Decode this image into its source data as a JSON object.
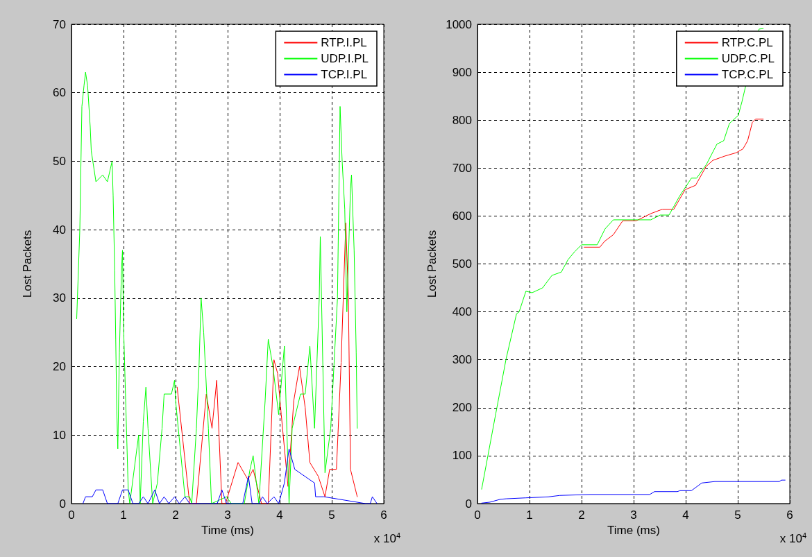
{
  "chart_data": [
    {
      "type": "line",
      "xlabel": "Time (ms)",
      "ylabel": "Lost Packets",
      "annotations": [
        "x 10$^{4}$"
      ],
      "xlim": [
        0,
        6
      ],
      "xticks": [
        0,
        1,
        2,
        3,
        4,
        5,
        6
      ],
      "ylim": [
        0,
        70
      ],
      "yticks": [
        0,
        10,
        20,
        30,
        40,
        50,
        60,
        70
      ],
      "grid": true,
      "legend": "top right",
      "marker": "none",
      "line_style": "solid",
      "series": [
        {
          "name": "RTP.I.PL",
          "color": "#ff0000",
          "x": [
            2.03,
            2.27,
            2.4,
            2.59,
            2.7,
            2.79,
            2.89,
            2.96,
            3.2,
            3.39,
            3.49,
            3.65,
            3.78,
            3.89,
            3.96,
            4.03,
            4.16,
            4.27,
            4.38,
            4.49,
            4.58,
            4.74,
            4.87,
            4.96,
            5.09,
            5.18,
            5.27,
            5.32,
            5.36,
            5.49
          ],
          "values": [
            17,
            0,
            0,
            16,
            11,
            18,
            0,
            0,
            6,
            3.5,
            5,
            0,
            0,
            21,
            19,
            13,
            2.5,
            15,
            20,
            14,
            6,
            4,
            1,
            5,
            5,
            20.6,
            41,
            30,
            5,
            1
          ]
        },
        {
          "name": "UDP.I.PL",
          "color": "#00ff00",
          "x": [
            0.1,
            0.16,
            0.2,
            0.24,
            0.27,
            0.31,
            0.36,
            0.38,
            0.47,
            0.6,
            0.69,
            0.78,
            0.8,
            0.83,
            0.85,
            0.87,
            0.89,
            0.92,
            0.96,
            0.98,
            1.0,
            1.09,
            1.12,
            1.29,
            1.32,
            1.38,
            1.43,
            1.47,
            1.56,
            1.65,
            1.74,
            1.78,
            1.92,
            1.98,
            2.0,
            2.09,
            2.18,
            2.27,
            2.31,
            2.4,
            2.45,
            2.49,
            2.54,
            2.63,
            2.69,
            2.98,
            3.07,
            3.32,
            3.43,
            3.49,
            3.6,
            3.72,
            3.78,
            3.87,
            3.98,
            4.09,
            4.18,
            4.24,
            4.4,
            4.49,
            4.58,
            4.67,
            4.76,
            4.78,
            4.87,
            4.98,
            5.11,
            5.16,
            5.2,
            5.25,
            5.29,
            5.36,
            5.38,
            5.43,
            5.47,
            5.49
          ],
          "values": [
            27,
            40,
            58,
            61,
            63,
            61,
            55,
            51.5,
            47,
            48,
            47,
            50,
            45,
            34,
            24,
            13.5,
            8,
            22,
            34,
            37,
            26,
            2,
            0,
            10,
            0,
            12,
            17,
            11,
            0,
            3,
            11,
            16,
            16,
            18,
            15,
            8,
            1,
            1,
            0,
            11,
            20,
            30,
            25,
            11,
            0,
            1,
            0,
            0,
            5,
            7,
            0,
            15,
            24,
            20,
            13,
            23,
            0,
            11,
            16,
            16,
            23,
            11,
            30,
            39,
            4.5,
            11,
            30,
            58,
            50,
            43,
            28,
            46,
            48,
            37,
            22,
            11
          ]
        },
        {
          "name": "TCP.I.PL",
          "color": "#0000ff",
          "x": [
            0.22,
            0.27,
            0.4,
            0.47,
            0.6,
            0.69,
            0.89,
            0.98,
            1.09,
            1.18,
            1.29,
            1.38,
            1.47,
            1.6,
            1.69,
            1.78,
            1.87,
            1.98,
            2.07,
            2.18,
            2.27,
            2.8,
            2.89,
            2.98,
            3.29,
            3.4,
            3.47,
            3.6,
            3.67,
            3.76,
            3.89,
            3.98,
            4.09,
            4.18,
            4.29,
            4.67,
            4.69,
            4.85,
            5.65,
            5.74,
            5.78,
            5.87
          ],
          "values": [
            0,
            1,
            1,
            2,
            2,
            0,
            0,
            2,
            2,
            0,
            0,
            1,
            0,
            2,
            0,
            1,
            0,
            1,
            0,
            1,
            0,
            0,
            2,
            0,
            0,
            4,
            0,
            0,
            1,
            0,
            1,
            0,
            3,
            8,
            5,
            3,
            1,
            1,
            0,
            0,
            1,
            0
          ]
        }
      ]
    },
    {
      "type": "line",
      "xlabel": "Time (ms)",
      "ylabel": "Lost Packets",
      "annotations": [
        "x 10$^{4}$"
      ],
      "xlim": [
        0,
        6
      ],
      "xticks": [
        0,
        1,
        2,
        3,
        4,
        5,
        6
      ],
      "ylim": [
        0,
        1000
      ],
      "yticks": [
        0,
        100,
        200,
        300,
        400,
        500,
        600,
        700,
        800,
        900,
        1000
      ],
      "grid": true,
      "legend": "top right",
      "marker": "none",
      "line_style": "solid",
      "series": [
        {
          "name": "RTP.C.PL",
          "color": "#ff0000",
          "x": [
            2.05,
            2.35,
            2.44,
            2.61,
            2.79,
            3.05,
            3.33,
            3.55,
            3.77,
            3.99,
            4.19,
            4.39,
            4.52,
            4.75,
            4.97,
            5.1,
            5.19,
            5.28,
            5.34,
            5.49
          ],
          "values": [
            535,
            535,
            547,
            561,
            590,
            590,
            605,
            614,
            614,
            655,
            664,
            703,
            716,
            725,
            732,
            740,
            757,
            795,
            802,
            802
          ]
        },
        {
          "name": "UDP.C.PL",
          "color": "#00ff00",
          "x": [
            0.08,
            0.35,
            0.55,
            0.75,
            0.8,
            0.93,
            1.05,
            1.25,
            1.43,
            1.61,
            1.74,
            1.87,
            2.0,
            2.3,
            2.45,
            2.61,
            3.33,
            3.51,
            3.68,
            3.88,
            4.11,
            4.21,
            4.4,
            4.6,
            4.73,
            4.84,
            5.01,
            5.08,
            5.41,
            5.49
          ],
          "values": [
            30,
            187,
            302,
            396,
            400,
            443,
            440,
            450,
            476,
            483,
            509,
            526,
            540,
            540,
            573,
            592,
            592,
            602,
            602,
            641,
            679,
            679,
            708,
            750,
            757,
            793,
            810,
            838,
            990,
            991
          ]
        },
        {
          "name": "TCP.C.PL",
          "color": "#0000ff",
          "x": [
            0.08,
            0.24,
            0.44,
            0.55,
            0.93,
            1.36,
            1.58,
            2.16,
            3.31,
            3.4,
            3.84,
            3.89,
            4.11,
            4.31,
            4.56,
            5.8,
            5.84,
            5.91
          ],
          "values": [
            1,
            3,
            9,
            10,
            12,
            14,
            17,
            19,
            19,
            25,
            25,
            27,
            27,
            43,
            46,
            46,
            49,
            49
          ]
        }
      ]
    }
  ]
}
